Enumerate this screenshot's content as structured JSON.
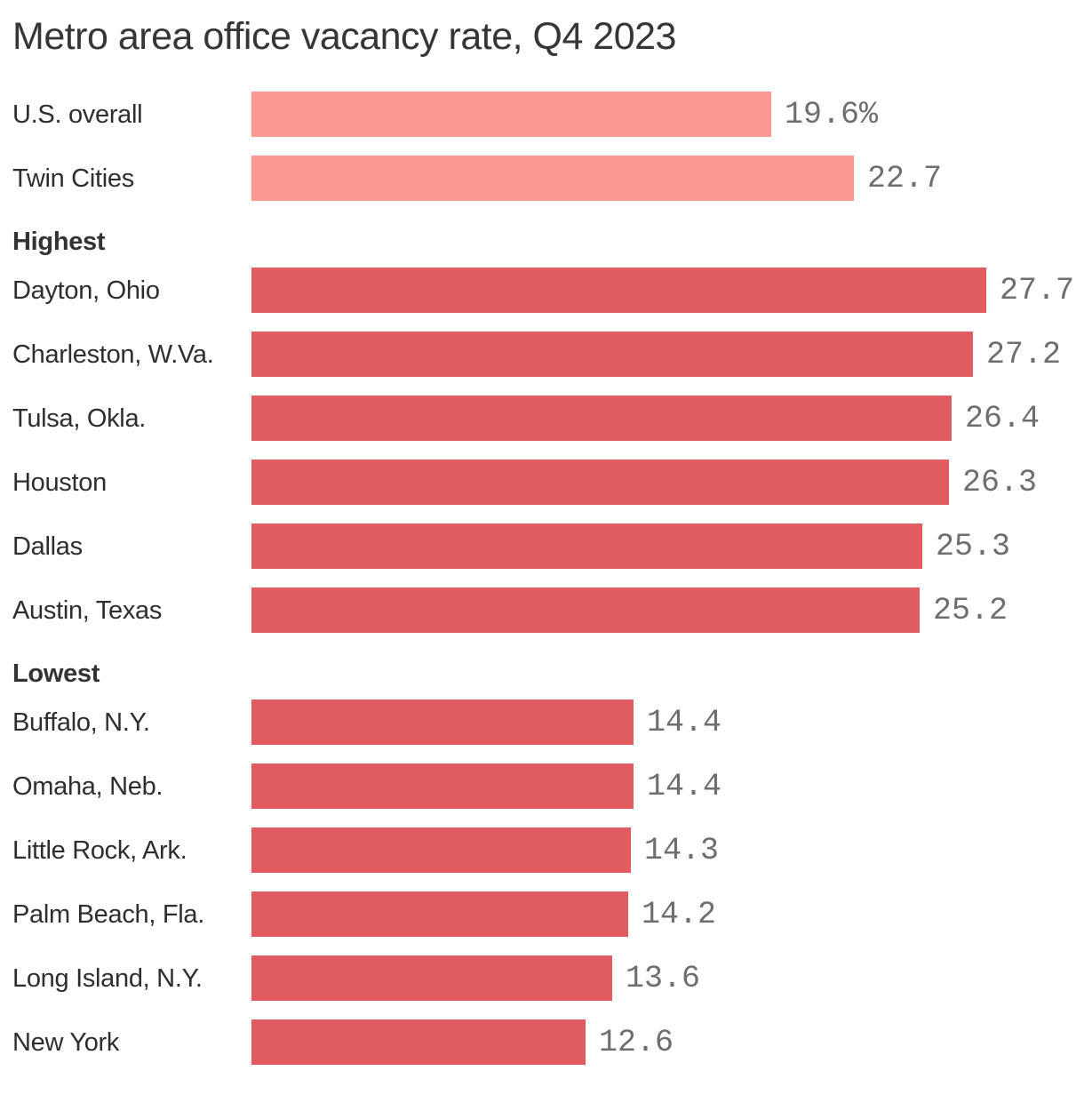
{
  "title": "Metro area office vacancy rate, Q4 2023",
  "colors": {
    "overall_bar": "#FC9990",
    "metro_bar": "#E05C60",
    "title_text": "#363636",
    "label_text": "#2E2E2E",
    "value_text": "#6E6E6E"
  },
  "chart_data": {
    "type": "bar",
    "orientation": "horizontal",
    "title": "Metro area office vacancy rate, Q4 2023",
    "unit": "percent",
    "value_axis_range": [
      0,
      27.7
    ],
    "grid": false,
    "legend": false,
    "groups": [
      {
        "header": "",
        "bar_color": "#FC9990",
        "rows": [
          {
            "label": "U.S. overall",
            "value": 19.6,
            "display": "19.6%"
          },
          {
            "label": "Twin Cities",
            "value": 22.7,
            "display": "22.7"
          }
        ]
      },
      {
        "header": "Highest",
        "bar_color": "#E05C60",
        "rows": [
          {
            "label": "Dayton, Ohio",
            "value": 27.7,
            "display": "27.7"
          },
          {
            "label": "Charleston, W.Va.",
            "value": 27.2,
            "display": "27.2"
          },
          {
            "label": "Tulsa, Okla.",
            "value": 26.4,
            "display": "26.4"
          },
          {
            "label": "Houston",
            "value": 26.3,
            "display": "26.3"
          },
          {
            "label": "Dallas",
            "value": 25.3,
            "display": "25.3"
          },
          {
            "label": "Austin, Texas",
            "value": 25.2,
            "display": "25.2"
          }
        ]
      },
      {
        "header": "Lowest",
        "bar_color": "#E05C60",
        "rows": [
          {
            "label": "Buffalo, N.Y.",
            "value": 14.4,
            "display": "14.4"
          },
          {
            "label": "Omaha, Neb.",
            "value": 14.4,
            "display": "14.4"
          },
          {
            "label": "Little Rock, Ark.",
            "value": 14.3,
            "display": "14.3"
          },
          {
            "label": "Palm Beach, Fla.",
            "value": 14.2,
            "display": "14.2"
          },
          {
            "label": "Long Island, N.Y.",
            "value": 13.6,
            "display": "13.6"
          },
          {
            "label": "New York",
            "value": 12.6,
            "display": "12.6"
          }
        ]
      }
    ]
  }
}
